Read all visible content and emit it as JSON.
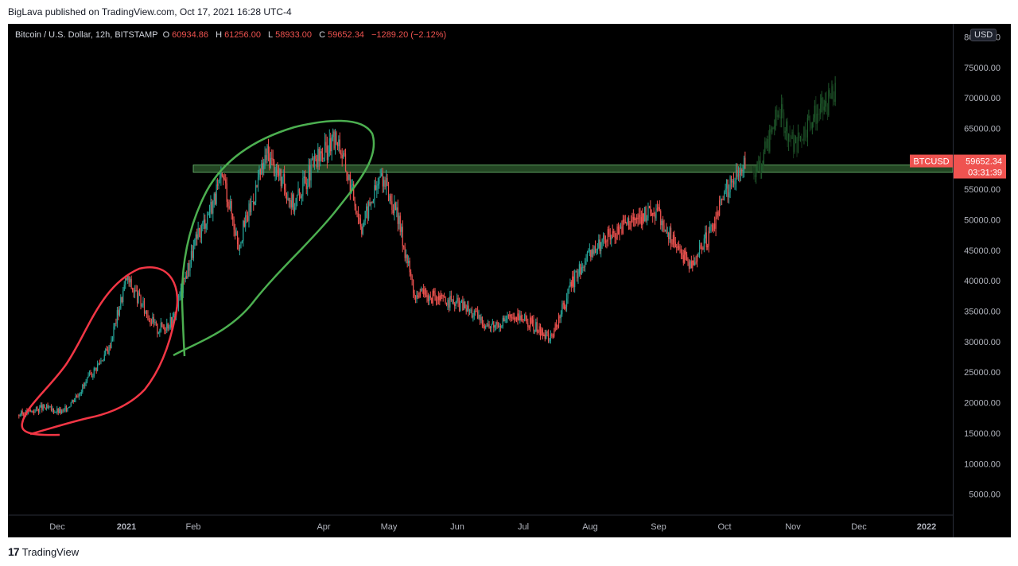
{
  "header": {
    "published": "BigLava published on TradingView.com, Oct 17, 2021 16:28 UTC-4"
  },
  "legend": {
    "symbol": "Bitcoin / U.S. Dollar, 12h, BITSTAMP",
    "open_label": "O",
    "open": "60934.86",
    "high_label": "H",
    "high": "61256.00",
    "low_label": "L",
    "low": "58933.00",
    "close_label": "C",
    "close": "59652.34",
    "change": "−1289.20 (−2.12%)"
  },
  "price_axis": {
    "currency": "USD",
    "ticks": [
      "80000.00",
      "75000.00",
      "70000.00",
      "65000.00",
      "60000.00",
      "55000.00",
      "50000.00",
      "45000.00",
      "40000.00",
      "35000.00",
      "30000.00",
      "25000.00",
      "20000.00",
      "15000.00",
      "10000.00",
      "5000.00"
    ],
    "ticker_tag": "BTCUSD",
    "last_price": "59652.34",
    "countdown": "03:31:39"
  },
  "time_axis": [
    "Dec",
    "2021",
    "Feb",
    "Apr",
    "May",
    "Jun",
    "Jul",
    "Aug",
    "Sep",
    "Oct",
    "Nov",
    "Dec",
    "2022"
  ],
  "footer": {
    "brand": "TradingView",
    "logo": "17"
  },
  "colors": {
    "up": "#26a69a",
    "down": "#ef5350",
    "up_dim": "#1e4a2a",
    "zone": "#2f5d2f",
    "red_marker": "#f23645",
    "green_marker": "#4caf50"
  },
  "chart_data": {
    "type": "candlestick",
    "title": "Bitcoin / U.S. Dollar, 12h, BITSTAMP",
    "ylim": [
      0,
      81000
    ],
    "y_ticks": [
      5000,
      10000,
      15000,
      20000,
      25000,
      30000,
      35000,
      40000,
      45000,
      50000,
      55000,
      60000,
      65000,
      70000,
      75000,
      80000
    ],
    "x_ticks": [
      "Dec",
      "2021",
      "Feb",
      "Apr",
      "May",
      "Jun",
      "Jul",
      "Aug",
      "Sep",
      "Oct",
      "Nov",
      "Dec",
      "2022"
    ],
    "last_price": 59652.34,
    "resistance_zone": [
      57800,
      59000
    ],
    "series": [
      {
        "name": "BTCUSD",
        "x": [
          "2020-11-20",
          "2020-12-01",
          "2020-12-10",
          "2020-12-20",
          "2020-12-31",
          "2021-01-08",
          "2021-01-15",
          "2021-01-22",
          "2021-01-29",
          "2021-02-08",
          "2021-02-21",
          "2021-02-28",
          "2021-03-13",
          "2021-03-25",
          "2021-04-03",
          "2021-04-14",
          "2021-04-25",
          "2021-05-04",
          "2021-05-12",
          "2021-05-19",
          "2021-05-31",
          "2021-06-10",
          "2021-06-22",
          "2021-07-05",
          "2021-07-20",
          "2021-08-01",
          "2021-08-14",
          "2021-08-23",
          "2021-09-06",
          "2021-09-21",
          "2021-10-01",
          "2021-10-07",
          "2021-10-14",
          "2021-10-17"
        ],
        "close": [
          18000,
          19200,
          18400,
          23000,
          29000,
          40500,
          36000,
          32000,
          33500,
          46000,
          57000,
          46000,
          61000,
          52500,
          59000,
          63500,
          49000,
          57500,
          49500,
          38000,
          37000,
          36000,
          32500,
          34500,
          30500,
          41500,
          47000,
          49500,
          51500,
          42500,
          48000,
          54500,
          58000,
          59652
        ]
      },
      {
        "name": "projection",
        "x": [
          "2021-10-20",
          "2021-10-25",
          "2021-11-01",
          "2021-11-08",
          "2021-11-15",
          "2021-11-22",
          "2021-11-27"
        ],
        "close": [
          58000,
          60500,
          68000,
          62000,
          66500,
          68500,
          71000
        ]
      }
    ],
    "annotations": [
      {
        "type": "ellipse",
        "color": "red",
        "around": "2020-11 to 2021-01 rally"
      },
      {
        "type": "ellipse",
        "color": "green",
        "around": "2021-01 to 2021-04 rally"
      },
      {
        "type": "band",
        "color": "green",
        "range": [
          57800,
          59000
        ]
      }
    ]
  }
}
